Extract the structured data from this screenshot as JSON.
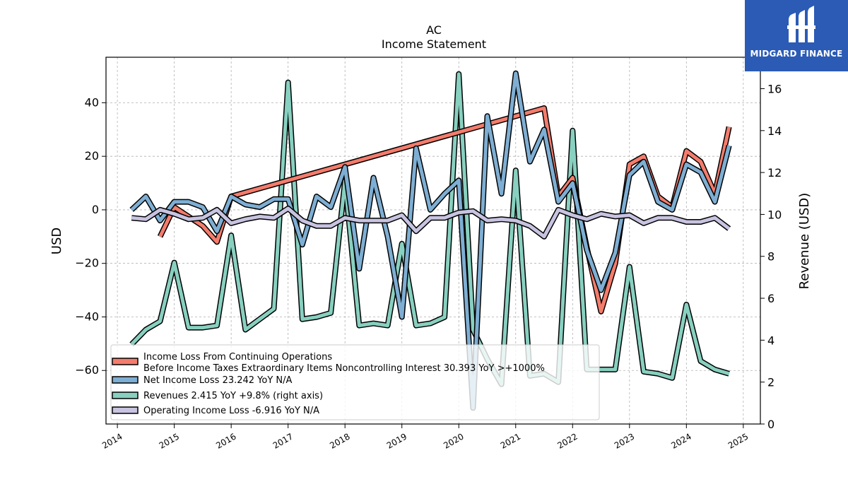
{
  "chart_data": {
    "type": "line",
    "title": "AC",
    "subtitle": "Income Statement",
    "ylabel": "USD",
    "y2label": "Revenue (USD)",
    "ylim": [
      -80,
      57
    ],
    "y2lim": [
      0,
      17.5
    ],
    "xlim": [
      2013.8,
      2025.3
    ],
    "yticks": [
      40,
      20,
      0,
      -20,
      -40,
      -60
    ],
    "y2ticks": [
      0,
      2,
      4,
      6,
      8,
      10,
      12,
      14,
      16
    ],
    "xticks": [
      2014,
      2015,
      2016,
      2017,
      2018,
      2019,
      2020,
      2021,
      2022,
      2023,
      2024,
      2025
    ],
    "grid": true,
    "legend_position": "lower-left",
    "series": [
      {
        "name": "Income Loss From Continuing Operations Before Income Taxes Extraordinary Items Noncontrolling Interest  30.393 YoY >+1000%",
        "legend_lines": [
          "Income Loss From Continuing Operations",
          "Before Income Taxes Extraordinary Items Noncontrolling Interest  30.393 YoY >+1000%"
        ],
        "color": "#f47c6c",
        "axis": "left",
        "points": [
          [
            2014.75,
            -10
          ],
          [
            2015.0,
            1
          ],
          [
            2015.5,
            -6
          ],
          [
            2015.75,
            -12
          ],
          [
            2016.0,
            5
          ],
          [
            2021.5,
            38
          ],
          [
            2021.75,
            5
          ],
          [
            2022.0,
            12
          ],
          [
            2022.25,
            -14
          ],
          [
            2022.5,
            -38
          ],
          [
            2022.75,
            -20
          ],
          [
            2023.0,
            17
          ],
          [
            2023.25,
            20
          ],
          [
            2023.5,
            5
          ],
          [
            2023.75,
            1
          ],
          [
            2024.0,
            22
          ],
          [
            2024.25,
            18
          ],
          [
            2024.5,
            6
          ],
          [
            2024.75,
            31
          ]
        ]
      },
      {
        "name": "Net Income Loss  23.242 YoY N/A",
        "legend_lines": [
          "Net Income Loss  23.242 YoY N/A"
        ],
        "color": "#7eaed3",
        "axis": "left",
        "points": [
          [
            2014.25,
            0
          ],
          [
            2014.5,
            5
          ],
          [
            2014.75,
            -4
          ],
          [
            2015.0,
            3
          ],
          [
            2015.25,
            3
          ],
          [
            2015.5,
            1
          ],
          [
            2015.75,
            -8
          ],
          [
            2016.0,
            5
          ],
          [
            2016.25,
            2
          ],
          [
            2016.5,
            1
          ],
          [
            2016.75,
            4
          ],
          [
            2017.0,
            4
          ],
          [
            2017.25,
            -13
          ],
          [
            2017.5,
            5
          ],
          [
            2017.75,
            1
          ],
          [
            2018.0,
            16
          ],
          [
            2018.25,
            -22
          ],
          [
            2018.5,
            12
          ],
          [
            2018.75,
            -10
          ],
          [
            2019.0,
            -40
          ],
          [
            2019.25,
            23
          ],
          [
            2019.5,
            0
          ],
          [
            2019.75,
            6
          ],
          [
            2020.0,
            11
          ],
          [
            2020.25,
            -74
          ],
          [
            2020.5,
            35
          ],
          [
            2020.75,
            6
          ],
          [
            2021.0,
            51
          ],
          [
            2021.25,
            18
          ],
          [
            2021.5,
            30
          ],
          [
            2021.75,
            3
          ],
          [
            2022.0,
            10
          ],
          [
            2022.25,
            -15
          ],
          [
            2022.5,
            -30
          ],
          [
            2022.75,
            -16
          ],
          [
            2023.0,
            13
          ],
          [
            2023.25,
            18
          ],
          [
            2023.5,
            3
          ],
          [
            2023.75,
            0
          ],
          [
            2024.0,
            17
          ],
          [
            2024.25,
            14
          ],
          [
            2024.5,
            3
          ],
          [
            2024.75,
            24
          ]
        ]
      },
      {
        "name": "Revenues  2.415 YoY +9.8% (right axis)",
        "legend_lines": [
          "Revenues  2.415 YoY +9.8% (right axis)"
        ],
        "color": "#88d0c0",
        "axis": "right",
        "points": [
          [
            2014.25,
            3.8
          ],
          [
            2014.5,
            4.5
          ],
          [
            2014.75,
            4.9
          ],
          [
            2015.0,
            7.7
          ],
          [
            2015.25,
            4.6
          ],
          [
            2015.5,
            4.6
          ],
          [
            2015.75,
            4.7
          ],
          [
            2016.0,
            9.0
          ],
          [
            2016.25,
            4.5
          ],
          [
            2016.5,
            5.0
          ],
          [
            2016.75,
            5.5
          ],
          [
            2017.0,
            16.3
          ],
          [
            2017.25,
            5.0
          ],
          [
            2017.5,
            5.1
          ],
          [
            2017.75,
            5.3
          ],
          [
            2018.0,
            11.6
          ],
          [
            2018.25,
            4.7
          ],
          [
            2018.5,
            4.8
          ],
          [
            2018.75,
            4.7
          ],
          [
            2019.0,
            8.6
          ],
          [
            2019.25,
            4.7
          ],
          [
            2019.5,
            4.8
          ],
          [
            2019.75,
            5.1
          ],
          [
            2020.0,
            16.7
          ],
          [
            2020.25,
            4.5
          ],
          [
            2020.5,
            3.1
          ],
          [
            2020.75,
            1.9
          ],
          [
            2021.0,
            12.1
          ],
          [
            2021.25,
            2.3
          ],
          [
            2021.5,
            2.4
          ],
          [
            2021.75,
            2.0
          ],
          [
            2022.0,
            14.0
          ],
          [
            2022.25,
            2.6
          ],
          [
            2022.5,
            2.6
          ],
          [
            2022.75,
            2.6
          ],
          [
            2023.0,
            7.5
          ],
          [
            2023.25,
            2.5
          ],
          [
            2023.5,
            2.4
          ],
          [
            2023.75,
            2.2
          ],
          [
            2024.0,
            5.7
          ],
          [
            2024.25,
            3.0
          ],
          [
            2024.5,
            2.6
          ],
          [
            2024.75,
            2.4
          ]
        ]
      },
      {
        "name": "Operating Income Loss  -6.916 YoY N/A",
        "legend_lines": [
          "Operating Income Loss  -6.916 YoY N/A"
        ],
        "color": "#c7c3e0",
        "axis": "left",
        "points": [
          [
            2014.25,
            -3
          ],
          [
            2014.5,
            -3.5
          ],
          [
            2014.75,
            0
          ],
          [
            2015.0,
            -1.5
          ],
          [
            2015.25,
            -3.5
          ],
          [
            2015.5,
            -3
          ],
          [
            2015.75,
            0
          ],
          [
            2016.0,
            -5
          ],
          [
            2016.25,
            -3.5
          ],
          [
            2016.5,
            -2.5
          ],
          [
            2016.75,
            -3
          ],
          [
            2017.0,
            0.5
          ],
          [
            2017.25,
            -4
          ],
          [
            2017.5,
            -6
          ],
          [
            2017.75,
            -6
          ],
          [
            2018.0,
            -3
          ],
          [
            2018.25,
            -4
          ],
          [
            2018.5,
            -4
          ],
          [
            2018.75,
            -4
          ],
          [
            2019.0,
            -2
          ],
          [
            2019.25,
            -8
          ],
          [
            2019.5,
            -3
          ],
          [
            2019.75,
            -3
          ],
          [
            2020.0,
            -1
          ],
          [
            2020.25,
            -0.5
          ],
          [
            2020.5,
            -4
          ],
          [
            2020.75,
            -3.5
          ],
          [
            2021.0,
            -4
          ],
          [
            2021.25,
            -6
          ],
          [
            2021.5,
            -10
          ],
          [
            2021.75,
            0
          ],
          [
            2022.0,
            -2
          ],
          [
            2022.25,
            -3.5
          ],
          [
            2022.5,
            -1.5
          ],
          [
            2022.75,
            -2.5
          ],
          [
            2023.0,
            -2
          ],
          [
            2023.25,
            -5
          ],
          [
            2023.5,
            -3
          ],
          [
            2023.75,
            -3
          ],
          [
            2024.0,
            -4.5
          ],
          [
            2024.25,
            -4.5
          ],
          [
            2024.5,
            -3
          ],
          [
            2024.75,
            -7
          ]
        ]
      }
    ]
  },
  "logo": {
    "text": "MIDGARD FINANCE",
    "background": "#2b5bb5"
  }
}
